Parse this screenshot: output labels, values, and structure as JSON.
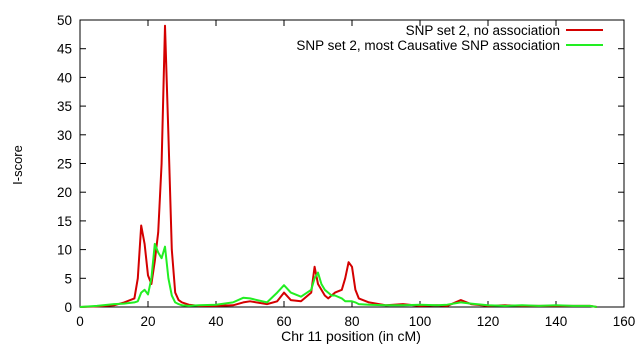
{
  "chart_data": {
    "type": "line",
    "title": "",
    "xlabel": "Chr 11 position (in cM)",
    "ylabel": "I-score",
    "xlim": [
      0,
      160
    ],
    "ylim": [
      0,
      50
    ],
    "xticks": [
      0,
      20,
      40,
      60,
      80,
      100,
      120,
      140,
      160
    ],
    "yticks": [
      0,
      5,
      10,
      15,
      20,
      25,
      30,
      35,
      40,
      45,
      50
    ],
    "grid": false,
    "legend_position": "top-right",
    "series": [
      {
        "name": "SNP set 2, no association",
        "color": "#d40000",
        "x": [
          0,
          5,
          10,
          13,
          16,
          17,
          18,
          19,
          20,
          21,
          22,
          23,
          24,
          25,
          26,
          27,
          28,
          29,
          30,
          32,
          35,
          40,
          45,
          48,
          50,
          55,
          58,
          60,
          62,
          65,
          68,
          69,
          70,
          71,
          72,
          73,
          74,
          75,
          77,
          78,
          79,
          80,
          81,
          82,
          85,
          90,
          95,
          100,
          105,
          108,
          112,
          115,
          120,
          125,
          130,
          135,
          140,
          145,
          150,
          152
        ],
        "values": [
          0,
          0.1,
          0.3,
          0.8,
          1.5,
          5,
          14.2,
          11,
          5.5,
          4,
          8,
          13,
          25,
          49,
          30,
          10,
          2.5,
          1.2,
          0.8,
          0.4,
          0.2,
          0.2,
          0.3,
          0.8,
          1,
          0.5,
          1,
          2.5,
          1.2,
          1,
          2.5,
          7,
          4,
          3,
          2,
          1.5,
          2,
          2.5,
          3,
          5,
          7.8,
          7,
          3,
          1.5,
          0.8,
          0.3,
          0.5,
          0.2,
          0.3,
          0.2,
          1.2,
          0.5,
          0.2,
          0.3,
          0.2,
          0.2,
          0.2,
          0.2,
          0.2,
          0
        ]
      },
      {
        "name": "SNP set 2, most Causative SNP association",
        "color": "#22ee22",
        "x": [
          0,
          5,
          10,
          13,
          16,
          17,
          18,
          19,
          20,
          21,
          22,
          23,
          24,
          25,
          26,
          27,
          28,
          29,
          30,
          32,
          35,
          40,
          45,
          48,
          50,
          55,
          58,
          60,
          62,
          65,
          68,
          69,
          70,
          71,
          72,
          73,
          74,
          75,
          77,
          78,
          79,
          80,
          81,
          82,
          85,
          90,
          95,
          100,
          105,
          108,
          112,
          115,
          120,
          125,
          130,
          135,
          140,
          145,
          150,
          152
        ],
        "values": [
          0,
          0.2,
          0.5,
          0.6,
          0.8,
          1,
          2.5,
          3,
          2.2,
          5,
          11,
          9.5,
          8.5,
          10.5,
          5,
          2,
          0.8,
          0.5,
          0.3,
          0.2,
          0.3,
          0.4,
          0.8,
          1.6,
          1.5,
          0.8,
          2.5,
          3.8,
          2.5,
          1.8,
          3,
          5,
          6,
          4,
          3,
          2.5,
          2,
          2,
          1.5,
          1,
          1,
          1,
          0.8,
          0.5,
          0.4,
          0.3,
          0.3,
          0.4,
          0.3,
          0.4,
          0.8,
          0.6,
          0.3,
          0.2,
          0.3,
          0.2,
          0.3,
          0.2,
          0.2,
          0
        ]
      }
    ]
  }
}
